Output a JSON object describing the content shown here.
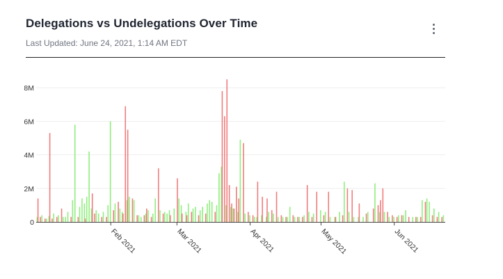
{
  "header": {
    "title": "Delegations vs Undelegations Over Time",
    "subtitle": "Last Updated: June 24, 2021, 1:14 AM EDT",
    "menu_icon": "kebab-menu-icon"
  },
  "colors": {
    "delegations": "#90ee7e",
    "undelegations": "#f07c7c",
    "grid": "#eeeeee",
    "axis": "#444444"
  },
  "chart_data": {
    "type": "bar",
    "x_start": "2021-01-01",
    "x_end": "2021-06-22",
    "ylim": [
      0,
      9000000
    ],
    "yticks": [
      {
        "value": 0,
        "label": "0"
      },
      {
        "value": 2000000,
        "label": "2M"
      },
      {
        "value": 4000000,
        "label": "4M"
      },
      {
        "value": 6000000,
        "label": "6M"
      },
      {
        "value": 8000000,
        "label": "8M"
      }
    ],
    "xticks": [
      {
        "date": "2021-02-01",
        "label": "Feb 2021"
      },
      {
        "date": "2021-03-01",
        "label": "Mar 2021"
      },
      {
        "date": "2021-04-01",
        "label": "Apr 2021"
      },
      {
        "date": "2021-05-01",
        "label": "May 2021"
      },
      {
        "date": "2021-06-01",
        "label": "Jun 2021"
      }
    ],
    "grid": true,
    "series": [
      {
        "key": "delegations",
        "points": [
          [
            "2021-01-01",
            0.3
          ],
          [
            "2021-01-03",
            0.4
          ],
          [
            "2021-01-05",
            0.2
          ],
          [
            "2021-01-06",
            0.35
          ],
          [
            "2021-01-08",
            0.5
          ],
          [
            "2021-01-10",
            0.4
          ],
          [
            "2021-01-12",
            0.3
          ],
          [
            "2021-01-13",
            0.3
          ],
          [
            "2021-01-14",
            0.6
          ],
          [
            "2021-01-16",
            1.3
          ],
          [
            "2021-01-17",
            5.8
          ],
          [
            "2021-01-19",
            0.9
          ],
          [
            "2021-01-20",
            1.4
          ],
          [
            "2021-01-21",
            1.1
          ],
          [
            "2021-01-22",
            1.5
          ],
          [
            "2021-01-23",
            4.2
          ],
          [
            "2021-01-24",
            0.8
          ],
          [
            "2021-01-26",
            0.7
          ],
          [
            "2021-01-27",
            0.5
          ],
          [
            "2021-01-29",
            0.6
          ],
          [
            "2021-01-31",
            1.0
          ],
          [
            "2021-02-01",
            6.0
          ],
          [
            "2021-02-03",
            1.1
          ],
          [
            "2021-02-05",
            0.8
          ],
          [
            "2021-02-06",
            0.6
          ],
          [
            "2021-02-08",
            1.3
          ],
          [
            "2021-02-09",
            1.5
          ],
          [
            "2021-02-11",
            1.3
          ],
          [
            "2021-02-13",
            0.4
          ],
          [
            "2021-02-14",
            0.3
          ],
          [
            "2021-02-16",
            0.5
          ],
          [
            "2021-02-17",
            0.7
          ],
          [
            "2021-02-19",
            0.5
          ],
          [
            "2021-02-20",
            1.4
          ],
          [
            "2021-02-22",
            0.7
          ],
          [
            "2021-02-24",
            0.6
          ],
          [
            "2021-02-25",
            0.5
          ],
          [
            "2021-02-26",
            0.7
          ],
          [
            "2021-02-28",
            0.8
          ],
          [
            "2021-03-02",
            1.4
          ],
          [
            "2021-03-03",
            1.0
          ],
          [
            "2021-03-05",
            0.6
          ],
          [
            "2021-03-06",
            1.1
          ],
          [
            "2021-03-08",
            0.8
          ],
          [
            "2021-03-09",
            0.9
          ],
          [
            "2021-03-11",
            0.7
          ],
          [
            "2021-03-12",
            0.9
          ],
          [
            "2021-03-14",
            1.1
          ],
          [
            "2021-03-15",
            1.3
          ],
          [
            "2021-03-16",
            1.2
          ],
          [
            "2021-03-18",
            1.0
          ],
          [
            "2021-03-19",
            2.9
          ],
          [
            "2021-03-20",
            3.3
          ],
          [
            "2021-03-22",
            1.0
          ],
          [
            "2021-03-24",
            0.9
          ],
          [
            "2021-03-25",
            0.8
          ],
          [
            "2021-03-27",
            0.6
          ],
          [
            "2021-03-28",
            4.9
          ],
          [
            "2021-03-30",
            0.5
          ],
          [
            "2021-04-01",
            0.4
          ],
          [
            "2021-04-03",
            0.3
          ],
          [
            "2021-04-04",
            0.3
          ],
          [
            "2021-04-06",
            0.4
          ],
          [
            "2021-04-08",
            0.3
          ],
          [
            "2021-04-09",
            0.6
          ],
          [
            "2021-04-11",
            0.5
          ],
          [
            "2021-04-13",
            0.3
          ],
          [
            "2021-04-15",
            0.3
          ],
          [
            "2021-04-17",
            0.3
          ],
          [
            "2021-04-18",
            0.9
          ],
          [
            "2021-04-20",
            0.3
          ],
          [
            "2021-04-22",
            0.3
          ],
          [
            "2021-04-24",
            0.4
          ],
          [
            "2021-04-26",
            0.6
          ],
          [
            "2021-04-28",
            0.5
          ],
          [
            "2021-05-01",
            0.7
          ],
          [
            "2021-05-03",
            0.6
          ],
          [
            "2021-05-05",
            0.3
          ],
          [
            "2021-05-07",
            0.3
          ],
          [
            "2021-05-09",
            0.6
          ],
          [
            "2021-05-11",
            2.4
          ],
          [
            "2021-05-13",
            0.6
          ],
          [
            "2021-05-15",
            0.3
          ],
          [
            "2021-05-17",
            0.3
          ],
          [
            "2021-05-19",
            0.3
          ],
          [
            "2021-05-21",
            0.6
          ],
          [
            "2021-05-24",
            2.3
          ],
          [
            "2021-05-26",
            0.6
          ],
          [
            "2021-05-28",
            0.6
          ],
          [
            "2021-05-30",
            0.3
          ],
          [
            "2021-06-01",
            0.3
          ],
          [
            "2021-06-03",
            0.4
          ],
          [
            "2021-06-05",
            0.4
          ],
          [
            "2021-06-06",
            0.7
          ],
          [
            "2021-06-09",
            0.3
          ],
          [
            "2021-06-11",
            0.3
          ],
          [
            "2021-06-13",
            1.3
          ],
          [
            "2021-06-15",
            1.4
          ],
          [
            "2021-06-16",
            1.2
          ],
          [
            "2021-06-18",
            0.8
          ],
          [
            "2021-06-20",
            0.6
          ],
          [
            "2021-06-22",
            0.4
          ]
        ]
      },
      {
        "key": "undelegations",
        "points": [
          [
            "2021-01-01",
            1.4
          ],
          [
            "2021-01-02",
            0.3
          ],
          [
            "2021-01-04",
            0.2
          ],
          [
            "2021-01-06",
            5.3
          ],
          [
            "2021-01-07",
            0.2
          ],
          [
            "2021-01-09",
            0.3
          ],
          [
            "2021-01-11",
            0.8
          ],
          [
            "2021-01-15",
            0.3
          ],
          [
            "2021-01-18",
            0.3
          ],
          [
            "2021-01-21",
            0.2
          ],
          [
            "2021-01-24",
            1.7
          ],
          [
            "2021-01-25",
            0.5
          ],
          [
            "2021-01-28",
            0.3
          ],
          [
            "2021-01-30",
            0.3
          ],
          [
            "2021-02-02",
            0.7
          ],
          [
            "2021-02-04",
            1.2
          ],
          [
            "2021-02-06",
            0.5
          ],
          [
            "2021-02-07",
            6.9
          ],
          [
            "2021-02-08",
            5.5
          ],
          [
            "2021-02-10",
            1.4
          ],
          [
            "2021-02-12",
            0.4
          ],
          [
            "2021-02-15",
            0.4
          ],
          [
            "2021-02-16",
            0.8
          ],
          [
            "2021-02-18",
            0.3
          ],
          [
            "2021-02-21",
            3.2
          ],
          [
            "2021-02-23",
            0.5
          ],
          [
            "2021-02-26",
            0.4
          ],
          [
            "2021-03-01",
            2.6
          ],
          [
            "2021-03-03",
            0.5
          ],
          [
            "2021-03-05",
            0.4
          ],
          [
            "2021-03-07",
            0.6
          ],
          [
            "2021-03-10",
            0.4
          ],
          [
            "2021-03-13",
            0.5
          ],
          [
            "2021-03-17",
            0.6
          ],
          [
            "2021-03-20",
            7.8
          ],
          [
            "2021-03-21",
            6.3
          ],
          [
            "2021-03-22",
            8.5
          ],
          [
            "2021-03-23",
            2.2
          ],
          [
            "2021-03-24",
            1.1
          ],
          [
            "2021-03-25",
            0.8
          ],
          [
            "2021-03-26",
            2.1
          ],
          [
            "2021-03-27",
            1.4
          ],
          [
            "2021-03-29",
            4.7
          ],
          [
            "2021-03-31",
            0.6
          ],
          [
            "2021-04-02",
            0.4
          ],
          [
            "2021-04-04",
            2.4
          ],
          [
            "2021-04-06",
            1.5
          ],
          [
            "2021-04-08",
            1.4
          ],
          [
            "2021-04-10",
            0.7
          ],
          [
            "2021-04-12",
            1.8
          ],
          [
            "2021-04-14",
            0.4
          ],
          [
            "2021-04-16",
            0.3
          ],
          [
            "2021-04-19",
            0.4
          ],
          [
            "2021-04-21",
            0.3
          ],
          [
            "2021-04-23",
            0.3
          ],
          [
            "2021-04-25",
            2.2
          ],
          [
            "2021-04-27",
            0.3
          ],
          [
            "2021-04-29",
            1.8
          ],
          [
            "2021-05-02",
            0.4
          ],
          [
            "2021-05-04",
            1.8
          ],
          [
            "2021-05-07",
            0.3
          ],
          [
            "2021-05-10",
            0.4
          ],
          [
            "2021-05-12",
            2.0
          ],
          [
            "2021-05-14",
            1.9
          ],
          [
            "2021-05-17",
            1.1
          ],
          [
            "2021-05-20",
            0.5
          ],
          [
            "2021-05-23",
            0.8
          ],
          [
            "2021-05-25",
            1.0
          ],
          [
            "2021-05-26",
            1.3
          ],
          [
            "2021-05-27",
            2.0
          ],
          [
            "2021-05-29",
            0.6
          ],
          [
            "2021-05-31",
            0.4
          ],
          [
            "2021-06-02",
            0.3
          ],
          [
            "2021-06-04",
            0.4
          ],
          [
            "2021-06-07",
            0.3
          ],
          [
            "2021-06-10",
            0.3
          ],
          [
            "2021-06-12",
            0.3
          ],
          [
            "2021-06-14",
            1.2
          ],
          [
            "2021-06-17",
            0.4
          ],
          [
            "2021-06-19",
            0.3
          ],
          [
            "2021-06-21",
            0.3
          ]
        ]
      }
    ]
  }
}
